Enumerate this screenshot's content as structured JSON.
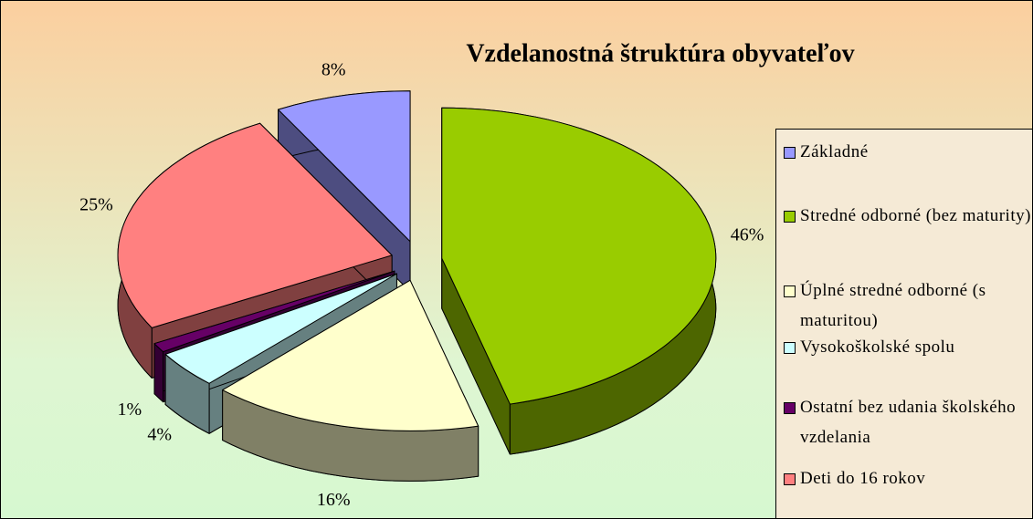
{
  "chart_data": {
    "type": "pie",
    "title": "Vzdelanostná štruktúra obyvateľov",
    "categories": [
      "Základné",
      "Stredné odborné (bez maturity)",
      "Úplné stredné odborné (s maturitou)",
      "Vysokoškolské spolu",
      "Ostatní bez udania školského vzdelania",
      "Deti do 16 rokov"
    ],
    "values": [
      8,
      46,
      16,
      4,
      1,
      25
    ],
    "value_labels": [
      "8%",
      "46%",
      "16%",
      "4%",
      "1%",
      "25%"
    ],
    "colors": [
      "#9999ff",
      "#99cc00",
      "#ffffcc",
      "#ccffff",
      "#660066",
      "#ff8080"
    ],
    "legend": "right"
  }
}
